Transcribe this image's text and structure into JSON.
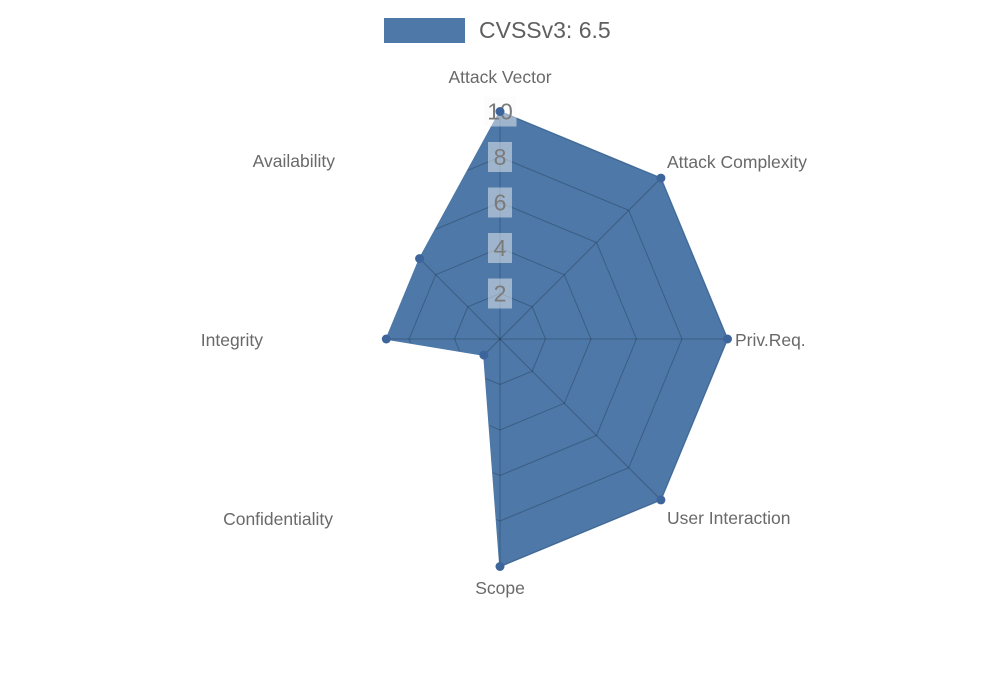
{
  "legend": {
    "label": "CVSSv3: 6.5",
    "swatch_color": "#4d78a8"
  },
  "chart_data": {
    "type": "radar",
    "title": "CVSSv3: 6.5",
    "categories": [
      "Attack Vector",
      "Attack Complexity",
      "Priv.Req.",
      "User Interaction",
      "Scope",
      "Confidentiality",
      "Integrity",
      "Availability"
    ],
    "series": [
      {
        "name": "CVSSv3: 6.5",
        "values": [
          10,
          10,
          10,
          10,
          10,
          1,
          5,
          5
        ]
      }
    ],
    "radial_ticks": [
      2,
      4,
      6,
      8,
      10
    ],
    "rlim": [
      0,
      10
    ],
    "grid": true,
    "grid_visible_only_inside_fill": true,
    "legend_position": "top-center",
    "colors": {
      "fill": "#4d78a8",
      "dot": "#3e659b",
      "grid_line": "rgba(0,0,0,0.22)",
      "axis_label": "#696969",
      "tick_label": "#7a7a7a",
      "tick_box_bg": "rgba(248,248,248,0.48)"
    }
  }
}
